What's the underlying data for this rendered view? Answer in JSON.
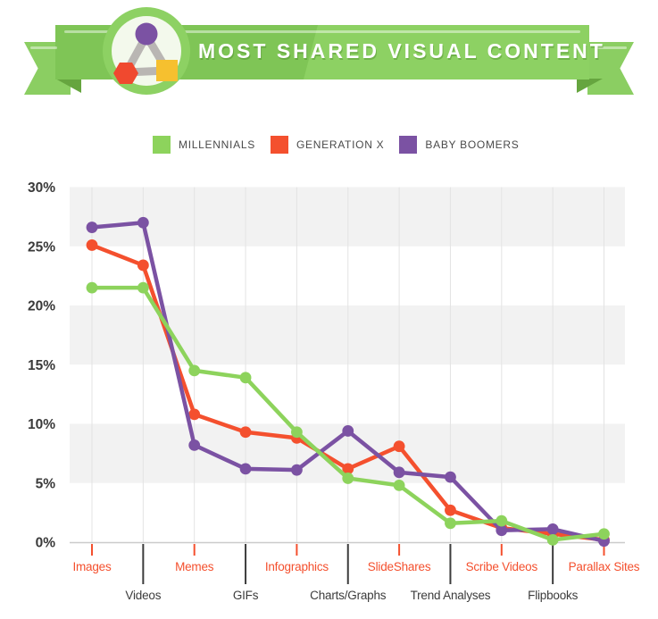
{
  "banner": {
    "title": "MOST SHARED VISUAL CONTENT",
    "logo": "triangle-network-logo",
    "colors": {
      "ribbon_left": "#7fc556",
      "ribbon_right": "#8dd163",
      "ribbon_fold": "#66a53f",
      "badge_inner": "#f3f9ec",
      "logo_circle": "#7b52a3",
      "logo_hexagon": "#f0492f",
      "logo_square": "#f6c02f",
      "title_text": "#ffffff"
    }
  },
  "legend": {
    "items": [
      {
        "label": "MILLENNIALS",
        "color": "#8dd35c"
      },
      {
        "label": "GENERATION X",
        "color": "#f4502e"
      },
      {
        "label": "BABY BOOMERS",
        "color": "#7b52a3"
      }
    ]
  },
  "chart_data": {
    "type": "line",
    "title": "Most Shared Visual Content",
    "categories": [
      "Images",
      "Videos",
      "Memes",
      "GIFs",
      "Infographics",
      "Charts/Graphs",
      "SlideShares",
      "Trend Analyses",
      "Scribe Videos",
      "Flipbooks",
      "Parallax Sites"
    ],
    "series": [
      {
        "name": "Millennials",
        "color": "#8dd35c",
        "values": [
          21.5,
          21.5,
          14.5,
          13.9,
          9.3,
          5.4,
          4.8,
          1.6,
          1.8,
          0.2,
          0.7
        ]
      },
      {
        "name": "Generation X",
        "color": "#f4502e",
        "values": [
          25.1,
          23.4,
          10.8,
          9.3,
          8.8,
          6.2,
          8.1,
          2.7,
          1.2,
          0.7,
          0.2
        ]
      },
      {
        "name": "Baby Boomers",
        "color": "#7b52a3",
        "values": [
          26.6,
          27.0,
          8.2,
          6.2,
          6.1,
          9.4,
          5.9,
          5.5,
          1.0,
          1.1,
          0.1
        ]
      }
    ],
    "unit": "%",
    "ylim": [
      0,
      30
    ],
    "y_ticks": [
      "0%",
      "5%",
      "10%",
      "15%",
      "20%",
      "25%",
      "30%"
    ],
    "grid": "alternating light-gray horizontal bands (25-30, 15-20, 5-10) with vertical category gridlines",
    "legend_position": "top",
    "x_label_style": {
      "note": "category labels alternate between an upper red row and a lower dark row",
      "red_row_color": "#f4502e",
      "dark_row_color": "#3c3c3c"
    }
  }
}
